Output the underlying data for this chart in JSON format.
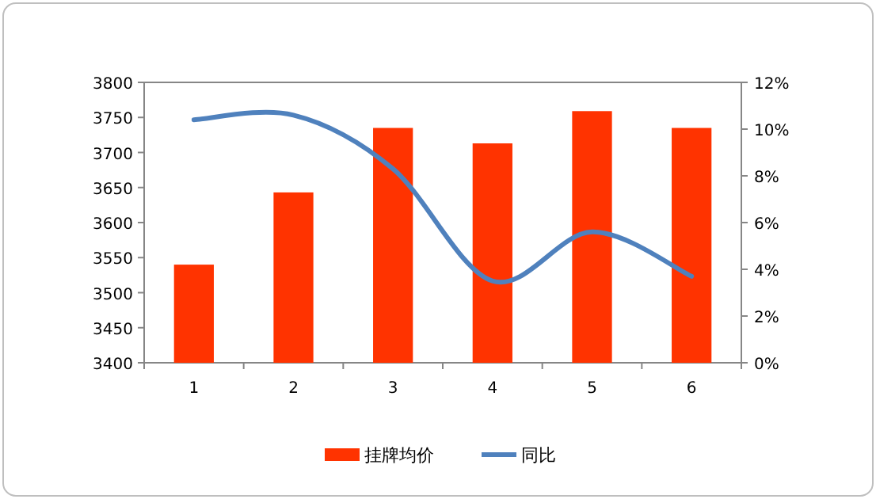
{
  "chart_data": {
    "type": "bar",
    "categories": [
      "1",
      "2",
      "3",
      "4",
      "5",
      "6"
    ],
    "series": [
      {
        "name": "挂牌均价",
        "color": "#ff3300",
        "values": [
          3540,
          3643,
          3735,
          3713,
          3759,
          3735
        ]
      },
      {
        "name": "同比",
        "type": "line",
        "axis": "y2",
        "color": "#4f81bd",
        "values": [
          10.4,
          10.6,
          8.3,
          3.5,
          5.6,
          3.7
        ]
      }
    ],
    "ylim": [
      3400,
      3800
    ],
    "yticks": [
      3400,
      3450,
      3500,
      3550,
      3600,
      3650,
      3700,
      3750,
      3800
    ],
    "y2lim": [
      0,
      12
    ],
    "y2ticks": [
      {
        "value": 0,
        "label": "0%"
      },
      {
        "value": 2,
        "label": "2%"
      },
      {
        "value": 4,
        "label": "4%"
      },
      {
        "value": 6,
        "label": "6%"
      },
      {
        "value": 8,
        "label": "8%"
      },
      {
        "value": 10,
        "label": "10%"
      },
      {
        "value": 12,
        "label": "12%"
      }
    ],
    "legend": "bottom"
  }
}
